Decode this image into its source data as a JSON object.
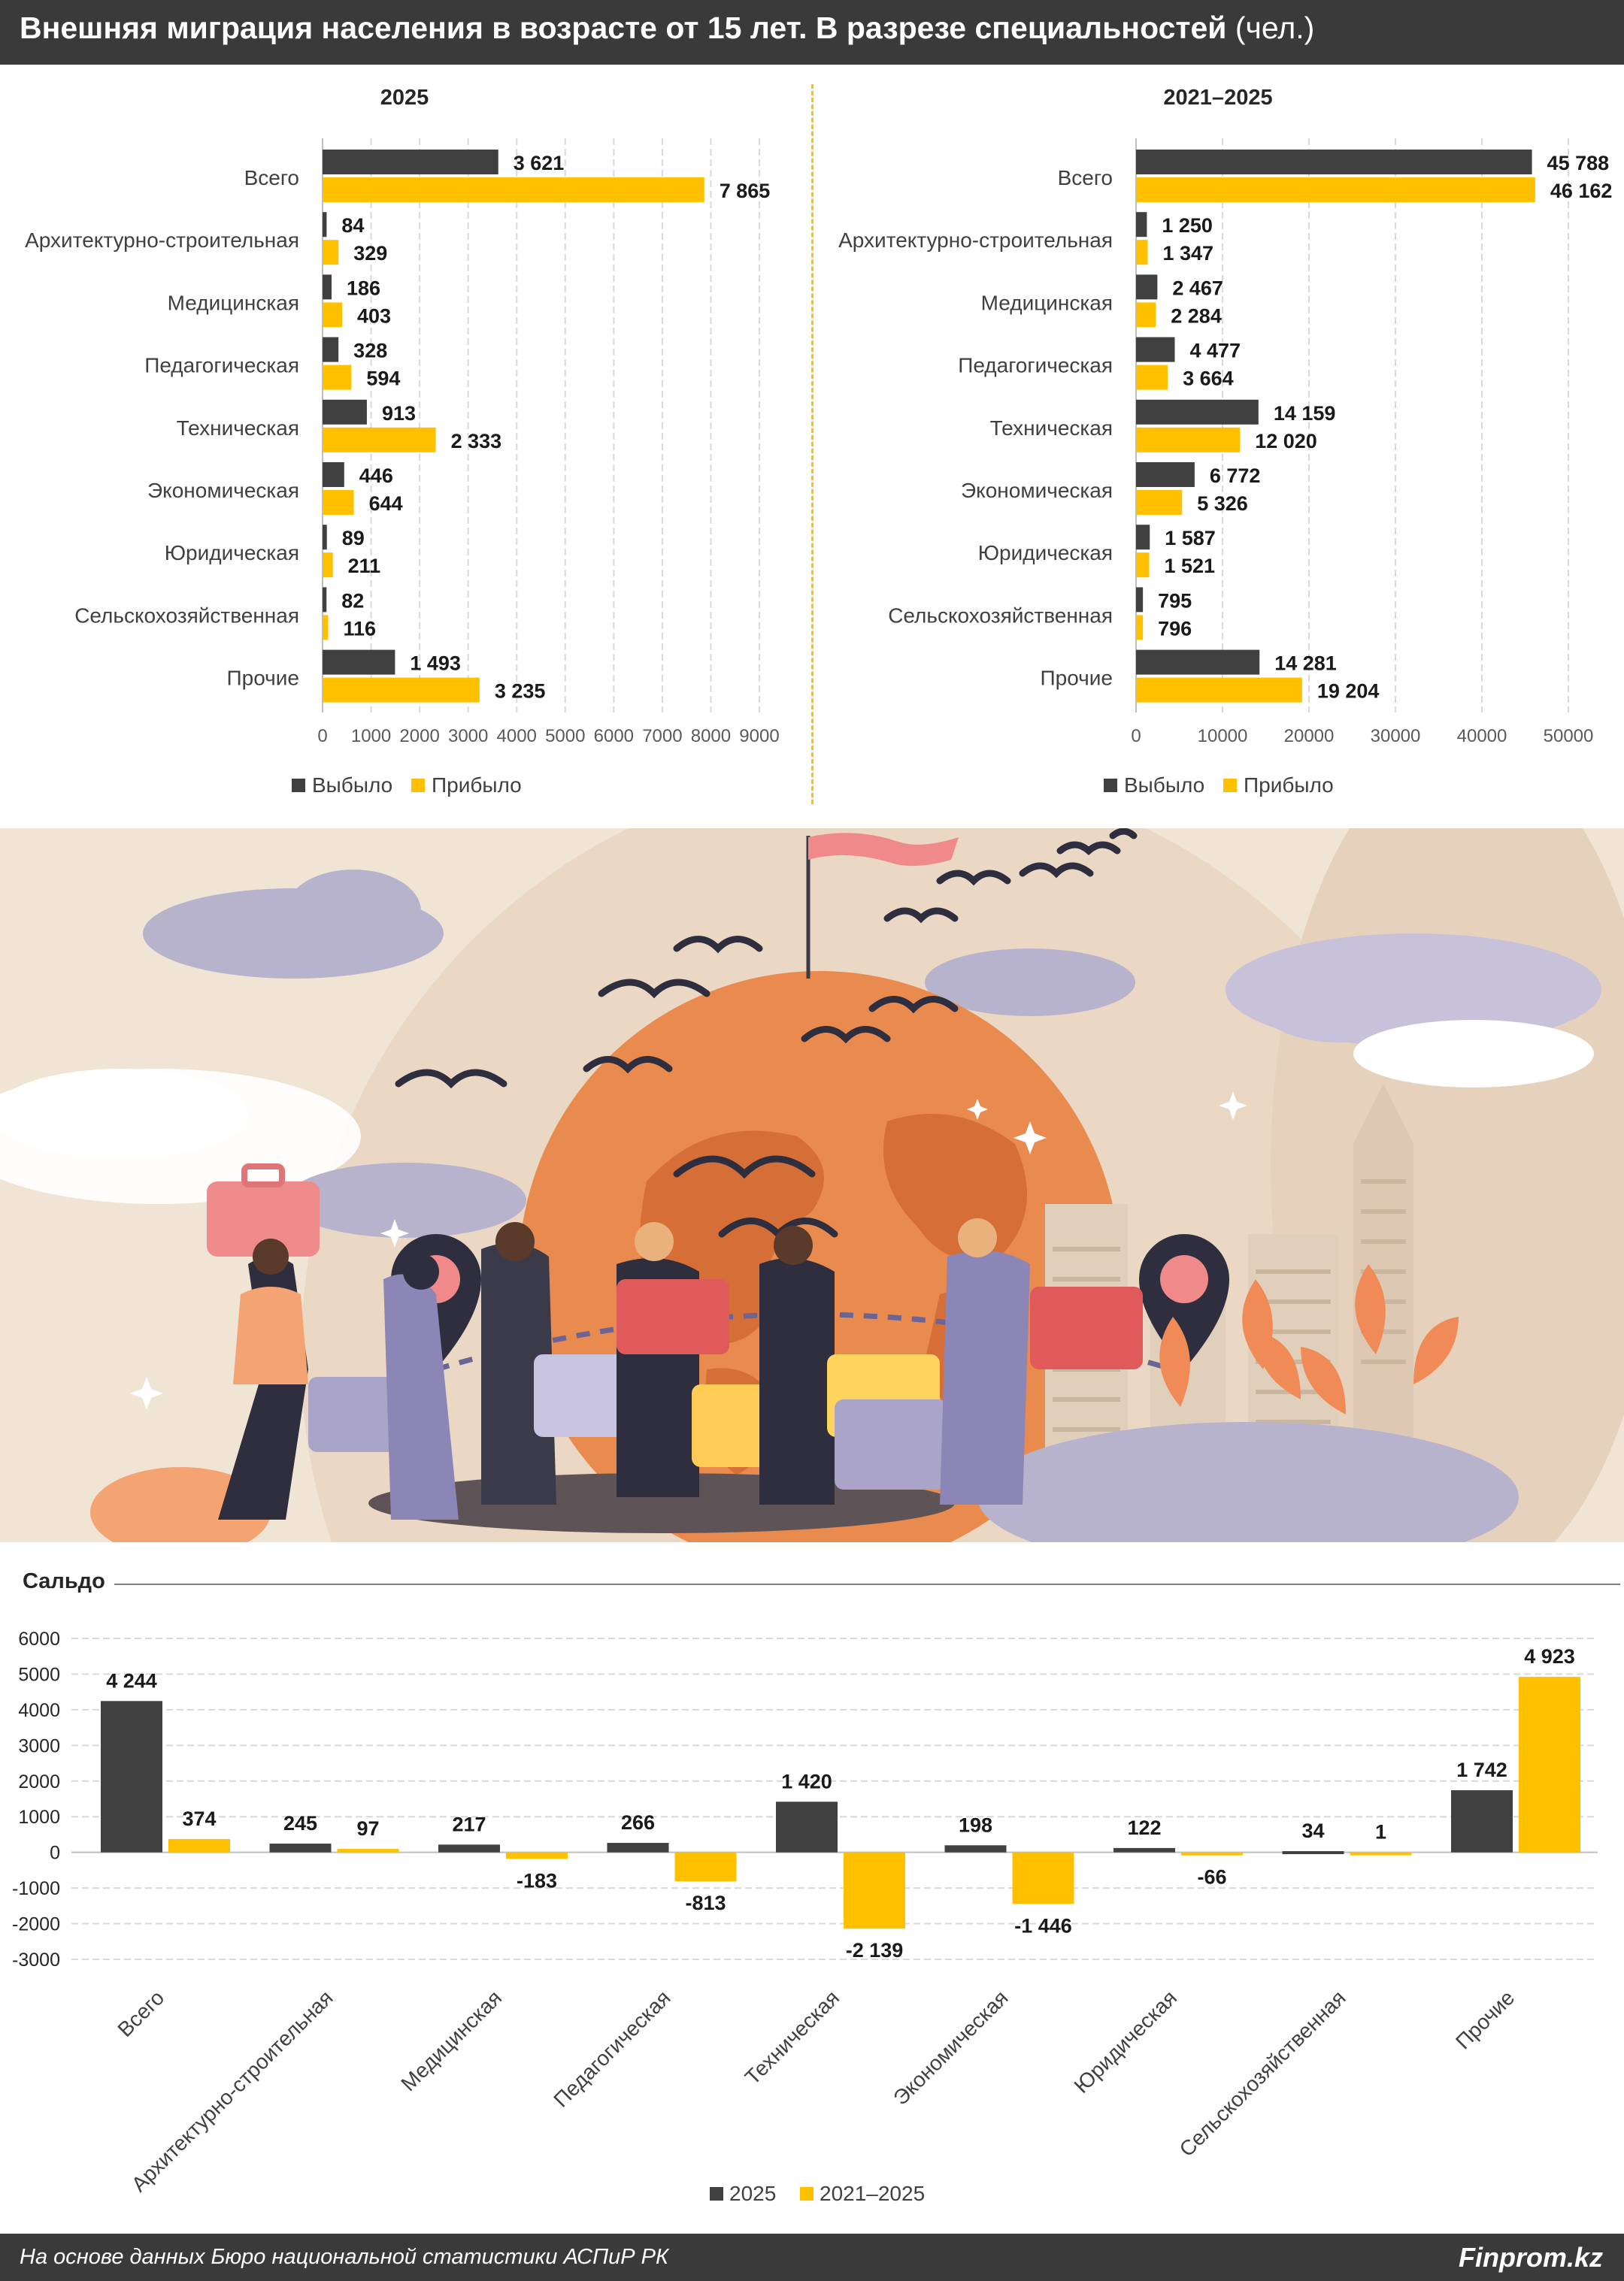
{
  "header": {
    "title": "Внешняя миграция населения в возрасте от 15 лет. В разрезе специальностей",
    "unit": "(чел.)"
  },
  "footer": {
    "source": "На основе данных Бюро национальной статистики АСПиР РК",
    "brand": "Finprom.kz"
  },
  "balance_title": "Сальдо",
  "colors": {
    "dark": "#404040",
    "yellow": "#ffc000",
    "grid": "#d9d9d9",
    "header_bg": "#3a3a3a"
  },
  "chart_data": [
    {
      "type": "bar",
      "orientation": "horizontal",
      "title": "2025",
      "categories": [
        "Всего",
        "Архитектурно-строительная",
        "Медицинская",
        "Педагогическая",
        "Техническая",
        "Экономическая",
        "Юридическая",
        "Сельскохозяйственная",
        "Прочие"
      ],
      "series": [
        {
          "name": "Выбыло",
          "color": "#404040",
          "values": [
            3621,
            84,
            186,
            328,
            913,
            446,
            89,
            82,
            1493
          ],
          "labels": [
            "3 621",
            "84",
            "186",
            "328",
            "913",
            "446",
            "89",
            "82",
            "1 493"
          ]
        },
        {
          "name": "Прибыло",
          "color": "#ffc000",
          "values": [
            7865,
            329,
            403,
            594,
            2333,
            644,
            211,
            116,
            3235
          ],
          "labels": [
            "7 865",
            "329",
            "403",
            "594",
            "2 333",
            "644",
            "211",
            "116",
            "3 235"
          ]
        }
      ],
      "xlim": [
        0,
        9000
      ],
      "ticks": [
        0,
        1000,
        2000,
        3000,
        4000,
        5000,
        6000,
        7000,
        8000,
        9000
      ],
      "grid": true,
      "legend_position": "bottom"
    },
    {
      "type": "bar",
      "orientation": "horizontal",
      "title": "2021–2025",
      "categories": [
        "Всего",
        "Архитектурно-строительная",
        "Медицинская",
        "Педагогическая",
        "Техническая",
        "Экономическая",
        "Юридическая",
        "Сельскохозяйственная",
        "Прочие"
      ],
      "series": [
        {
          "name": "Выбыло",
          "color": "#404040",
          "values": [
            45788,
            1250,
            2467,
            4477,
            14159,
            6772,
            1587,
            795,
            14281
          ],
          "labels": [
            "45 788",
            "1 250",
            "2 467",
            "4 477",
            "14 159",
            "6 772",
            "1 587",
            "795",
            "14 281"
          ]
        },
        {
          "name": "Прибыло",
          "color": "#ffc000",
          "values": [
            46162,
            1347,
            2284,
            3664,
            12020,
            5326,
            1521,
            796,
            19204
          ],
          "labels": [
            "46 162",
            "1 347",
            "2 284",
            "3 664",
            "12 020",
            "5 326",
            "1 521",
            "796",
            "19 204"
          ]
        }
      ],
      "xlim": [
        0,
        50000
      ],
      "ticks": [
        0,
        10000,
        20000,
        30000,
        40000,
        50000
      ],
      "grid": true,
      "legend_position": "bottom"
    },
    {
      "type": "bar",
      "orientation": "vertical",
      "title": "Сальдо",
      "categories": [
        "Всего",
        "Архитектурно-строительная",
        "Медицинская",
        "Педагогическая",
        "Техническая",
        "Экономическая",
        "Юридическая",
        "Сельскохозяйственная",
        "Прочие"
      ],
      "series": [
        {
          "name": "2025",
          "color": "#404040",
          "values": [
            4244,
            245,
            217,
            266,
            1420,
            198,
            122,
            34,
            1742
          ],
          "labels": [
            "4 244",
            "245",
            "217",
            "266",
            "1 420",
            "198",
            "122",
            "34",
            "1 742"
          ]
        },
        {
          "name": "2021–2025",
          "color": "#ffc000",
          "values": [
            374,
            97,
            -183,
            -813,
            -2139,
            -1446,
            -66,
            1,
            4923
          ],
          "labels": [
            "374",
            "97",
            "-183",
            "-813",
            "-2 139",
            "-1 446",
            "-66",
            "1",
            "4 923"
          ]
        }
      ],
      "ylim": [
        -3000,
        6000
      ],
      "ticks": [
        6000,
        5000,
        4000,
        3000,
        2000,
        1000,
        0,
        -1000,
        -2000,
        -3000
      ],
      "tick_labels": [
        "6000",
        "5000",
        "4000",
        "3000",
        "2000",
        "1000",
        "0",
        "-1000",
        "-2000",
        "-3000"
      ],
      "grid": true,
      "legend_position": "bottom"
    }
  ]
}
